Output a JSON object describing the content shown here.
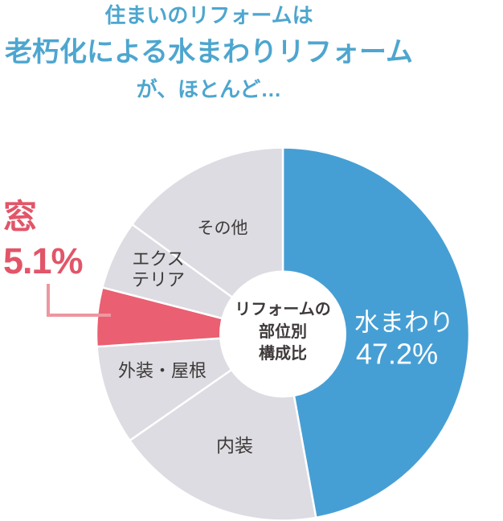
{
  "title": {
    "line1": "住まいのリフォームは",
    "line2": "老朽化による水まわりリフォーム",
    "line3": "が、ほとんど…",
    "color": "#4da6cf"
  },
  "callout": {
    "label": "窓",
    "value_label": "5.1%",
    "text_color": "#e25568",
    "line_color": "#ee96a0"
  },
  "center_label": {
    "lines": [
      "リフォームの",
      "部位別",
      "構成比"
    ]
  },
  "colors": {
    "accent_blue": "#469fd4",
    "neutral_gray": "#dcdce2",
    "highlight_red": "#ea5f71",
    "text_dark": "#3e3a39",
    "slice_border": "#ffffff",
    "center_circle": "#ffffff",
    "label_on_blue": "#ffffff"
  },
  "chart_data": {
    "type": "pie",
    "title": "リフォームの部位別構成比",
    "start_angle_deg": 0,
    "direction": "clockwise",
    "legend_position": "in-slice labels",
    "slices": [
      {
        "label": "水まわり",
        "value": 47.2,
        "value_label": "47.2%",
        "color": "#469fd4",
        "labeled": true
      },
      {
        "label": "内装",
        "value": 18.2,
        "color": "#dcdce2",
        "estimated": true
      },
      {
        "label": "外装・屋根",
        "value": 8.6,
        "color": "#dcdce2",
        "estimated": true
      },
      {
        "label": "窓",
        "value": 5.1,
        "value_label": "5.1%",
        "color": "#ea5f71",
        "labeled": true,
        "callout": true
      },
      {
        "label": "エクステリア",
        "value": 6.0,
        "color": "#dcdce2",
        "estimated": true
      },
      {
        "label": "その他",
        "value": 15.0,
        "color": "#dcdce2",
        "estimated": true
      }
    ]
  }
}
